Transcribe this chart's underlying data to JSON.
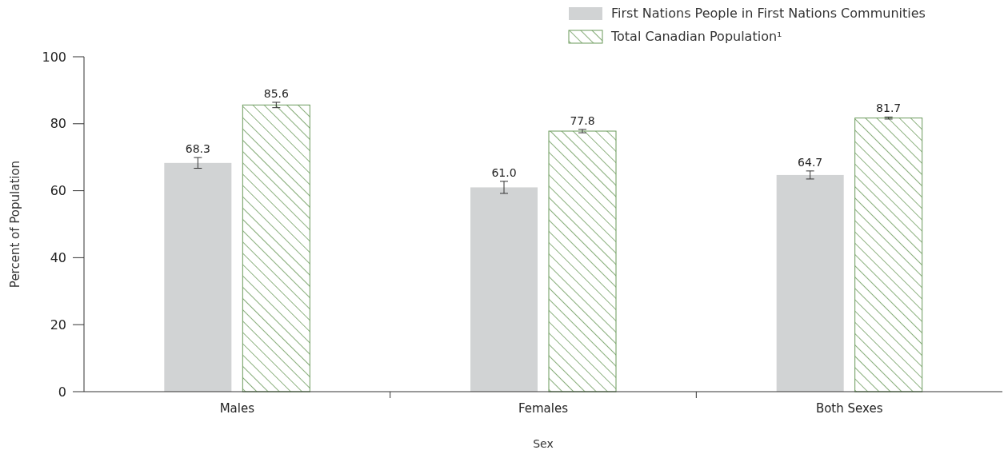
{
  "chart_data": {
    "type": "bar",
    "xlabel": "Sex",
    "ylabel": "Percent of Population",
    "categories": [
      "Males",
      "Females",
      "Both Sexes"
    ],
    "series": [
      {
        "name": "First Nations People in First Nations Communities",
        "color": "#d1d3d4",
        "values": [
          68.3,
          61.0,
          64.7
        ],
        "value_labels": [
          "68.3",
          "61.0",
          "64.7"
        ],
        "errors": [
          1.6,
          1.8,
          1.2
        ]
      },
      {
        "name": "Total Canadian Population¹",
        "color": "#6b9a5b",
        "values": [
          85.6,
          77.8,
          81.7
        ],
        "value_labels": [
          "85.6",
          "77.8",
          "81.7"
        ],
        "errors": [
          0.8,
          0.5,
          0.3
        ]
      }
    ],
    "ylim": [
      0,
      100
    ],
    "yticks": [
      0,
      20,
      40,
      60,
      80,
      100
    ],
    "legend": "top right",
    "grid": false
  }
}
